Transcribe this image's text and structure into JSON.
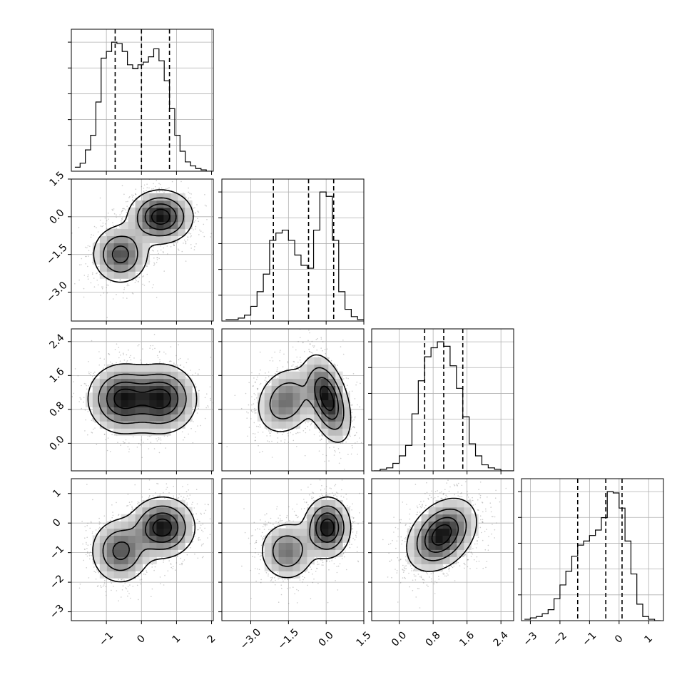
{
  "chart_data": {
    "type": "corner",
    "grid": true,
    "parameters": [
      {
        "ticks": [
          -1,
          0,
          1,
          2
        ],
        "tick_labels": [
          "−1",
          "0",
          "1",
          "2"
        ],
        "range": [
          -2.0,
          2.05
        ]
      },
      {
        "ticks": [
          -3.0,
          -1.5,
          0.0,
          1.5
        ],
        "tick_labels": [
          "−3.0",
          "−1.5",
          "0.0",
          "1.5"
        ],
        "range": [
          -4.15,
          1.5
        ]
      },
      {
        "ticks": [
          0.0,
          0.8,
          1.6,
          2.4
        ],
        "tick_labels": [
          "0.0",
          "0.8",
          "1.6",
          "2.4"
        ],
        "range": [
          -0.65,
          2.7
        ]
      },
      {
        "ticks": [
          -3,
          -2,
          -1,
          0,
          1
        ],
        "tick_labels": [
          "−3",
          "−2",
          "−1",
          "0",
          "1"
        ],
        "range": [
          -3.3,
          1.5
        ]
      }
    ],
    "histograms": [
      {
        "parameter": 0,
        "edges": [
          -1.9,
          -1.75,
          -1.6,
          -1.45,
          -1.3,
          -1.15,
          -1.0,
          -0.85,
          -0.7,
          -0.55,
          -0.4,
          -0.25,
          -0.1,
          0.05,
          0.2,
          0.35,
          0.5,
          0.65,
          0.8,
          0.95,
          1.1,
          1.25,
          1.4,
          1.55,
          1.7,
          1.85,
          2.0
        ],
        "counts": [
          0.03,
          0.06,
          0.16,
          0.27,
          0.52,
          0.85,
          0.9,
          0.97,
          0.96,
          0.9,
          0.8,
          0.77,
          0.8,
          0.82,
          0.86,
          0.92,
          0.83,
          0.68,
          0.47,
          0.27,
          0.15,
          0.07,
          0.04,
          0.02,
          0.01,
          0.0
        ],
        "quantiles": [
          -0.75,
          0.0,
          0.8
        ]
      },
      {
        "parameter": 1,
        "edges": [
          -4.0,
          -3.75,
          -3.5,
          -3.25,
          -3.0,
          -2.75,
          -2.5,
          -2.25,
          -2.0,
          -1.75,
          -1.5,
          -1.25,
          -1.0,
          -0.75,
          -0.5,
          -0.25,
          0.0,
          0.25,
          0.5,
          0.75,
          1.0,
          1.25,
          1.5
        ],
        "counts": [
          0.01,
          0.01,
          0.02,
          0.04,
          0.1,
          0.2,
          0.32,
          0.55,
          0.6,
          0.62,
          0.55,
          0.45,
          0.38,
          0.36,
          0.62,
          0.88,
          0.85,
          0.55,
          0.2,
          0.08,
          0.03,
          0.01
        ],
        "quantiles": [
          -2.1,
          -0.7,
          0.3
        ]
      },
      {
        "parameter": 2,
        "edges": [
          -0.6,
          -0.45,
          -0.3,
          -0.15,
          0.0,
          0.15,
          0.3,
          0.45,
          0.6,
          0.75,
          0.9,
          1.05,
          1.2,
          1.35,
          1.5,
          1.65,
          1.8,
          1.95,
          2.1,
          2.25,
          2.4,
          2.55,
          2.7
        ],
        "counts": [
          0.0,
          0.01,
          0.02,
          0.05,
          0.1,
          0.17,
          0.38,
          0.6,
          0.76,
          0.82,
          0.86,
          0.83,
          0.7,
          0.55,
          0.36,
          0.18,
          0.1,
          0.04,
          0.02,
          0.01,
          0.0,
          0.0
        ],
        "quantiles": [
          0.6,
          1.05,
          1.5
        ]
      },
      {
        "parameter": 3,
        "edges": [
          -3.2,
          -3.0,
          -2.8,
          -2.6,
          -2.4,
          -2.2,
          -2.0,
          -1.8,
          -1.6,
          -1.4,
          -1.2,
          -1.0,
          -0.8,
          -0.6,
          -0.4,
          -0.2,
          0.0,
          0.2,
          0.4,
          0.6,
          0.8,
          1.0,
          1.2,
          1.4
        ],
        "counts": [
          0.01,
          0.02,
          0.03,
          0.05,
          0.08,
          0.16,
          0.26,
          0.36,
          0.47,
          0.55,
          0.58,
          0.62,
          0.66,
          0.75,
          0.94,
          0.93,
          0.82,
          0.58,
          0.34,
          0.12,
          0.03,
          0.01,
          0.0
        ],
        "quantiles": [
          -1.4,
          -0.45,
          0.1
        ]
      }
    ],
    "joint_modes": [
      {
        "x": 0,
        "y": 1,
        "modes": [
          {
            "cx": -0.6,
            "cy": -1.5,
            "sx": 0.4,
            "sy": 0.58,
            "rho": 0.0,
            "w": 0.42
          },
          {
            "cx": 0.55,
            "cy": 0.0,
            "sx": 0.45,
            "sy": 0.52,
            "rho": 0.0,
            "w": 0.58
          }
        ]
      },
      {
        "x": 0,
        "y": 2,
        "modes": [
          {
            "cx": -0.55,
            "cy": 1.05,
            "sx": 0.48,
            "sy": 0.4,
            "rho": 0.0,
            "w": 0.5
          },
          {
            "cx": 0.6,
            "cy": 1.05,
            "sx": 0.48,
            "sy": 0.4,
            "rho": 0.0,
            "w": 0.5
          }
        ]
      },
      {
        "x": 1,
        "y": 2,
        "modes": [
          {
            "cx": -1.6,
            "cy": 1.0,
            "sx": 0.6,
            "sy": 0.4,
            "rho": 0.2,
            "w": 0.42
          },
          {
            "cx": 0.05,
            "cy": 1.05,
            "sx": 0.45,
            "sy": 0.5,
            "rho": -0.45,
            "w": 0.58
          }
        ]
      },
      {
        "x": 0,
        "y": 3,
        "modes": [
          {
            "cx": -0.6,
            "cy": -0.95,
            "sx": 0.42,
            "sy": 0.55,
            "rho": 0.0,
            "w": 0.42
          },
          {
            "cx": 0.6,
            "cy": -0.15,
            "sx": 0.45,
            "sy": 0.5,
            "rho": 0.0,
            "w": 0.58
          }
        ]
      },
      {
        "x": 1,
        "y": 3,
        "modes": [
          {
            "cx": -1.55,
            "cy": -0.95,
            "sx": 0.55,
            "sy": 0.5,
            "rho": 0.0,
            "w": 0.42
          },
          {
            "cx": 0.05,
            "cy": -0.15,
            "sx": 0.45,
            "sy": 0.5,
            "rho": 0.0,
            "w": 0.58
          }
        ]
      },
      {
        "x": 2,
        "y": 3,
        "modes": [
          {
            "cx": 1.0,
            "cy": -0.4,
            "sx": 0.4,
            "sy": 0.6,
            "rho": 0.35,
            "w": 1.0
          }
        ]
      }
    ]
  }
}
